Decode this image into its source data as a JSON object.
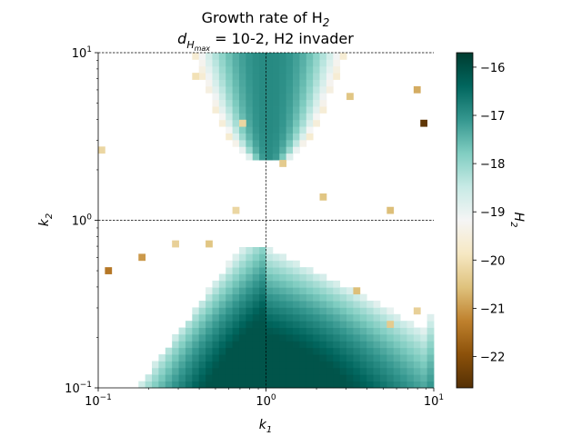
{
  "chart_data": {
    "type": "heatmap",
    "title_line1": "Growth rate of H",
    "title_line1_sub": "2",
    "title_line2_prefix": "d",
    "title_line2_sub": "H",
    "title_line2_subsub": "max",
    "title_line2_suffix": " = 10-2, H2 invader",
    "xlabel": "k",
    "xlabel_sub": "1",
    "ylabel": "k",
    "ylabel_sub": "2",
    "colorbar_label": "H",
    "colorbar_label_sub": "2",
    "xscale": "log",
    "yscale": "log",
    "xlim": [
      0.1,
      10
    ],
    "ylim": [
      0.1,
      10
    ],
    "x_ticks": [
      {
        "base": "10",
        "exp": "−1",
        "value": 0.1
      },
      {
        "base": "10",
        "exp": "0",
        "value": 1
      },
      {
        "base": "10",
        "exp": "1",
        "value": 10
      }
    ],
    "y_ticks": [
      {
        "base": "10",
        "exp": "−1",
        "value": 0.1
      },
      {
        "base": "10",
        "exp": "0",
        "value": 1
      },
      {
        "base": "10",
        "exp": "1",
        "value": 10
      }
    ],
    "colorbar_range": [
      -22.65,
      -15.7
    ],
    "colorbar_ticks": [
      "−16",
      "−17",
      "−18",
      "−19",
      "−20",
      "−21",
      "−22"
    ],
    "colorbar_tick_values": [
      -16,
      -17,
      -18,
      -19,
      -20,
      -21,
      -22
    ],
    "colormap": "BrBG",
    "grid": "dashed lines at k1 = 1, k2 = 1 and k2 = 10",
    "colormap_stops": [
      {
        "v": 0.0,
        "c": "#543005"
      },
      {
        "v": 0.1,
        "c": "#8c510a"
      },
      {
        "v": 0.2,
        "c": "#bf812d"
      },
      {
        "v": 0.3,
        "c": "#dfc27d"
      },
      {
        "v": 0.4,
        "c": "#f6e8c3"
      },
      {
        "v": 0.5,
        "c": "#f5f5f5"
      },
      {
        "v": 0.6,
        "c": "#c7eae5"
      },
      {
        "v": 0.7,
        "c": "#80cdc1"
      },
      {
        "v": 0.8,
        "c": "#35978f"
      },
      {
        "v": 0.9,
        "c": "#01665e"
      },
      {
        "v": 1.0,
        "c": "#003c30"
      }
    ]
  }
}
